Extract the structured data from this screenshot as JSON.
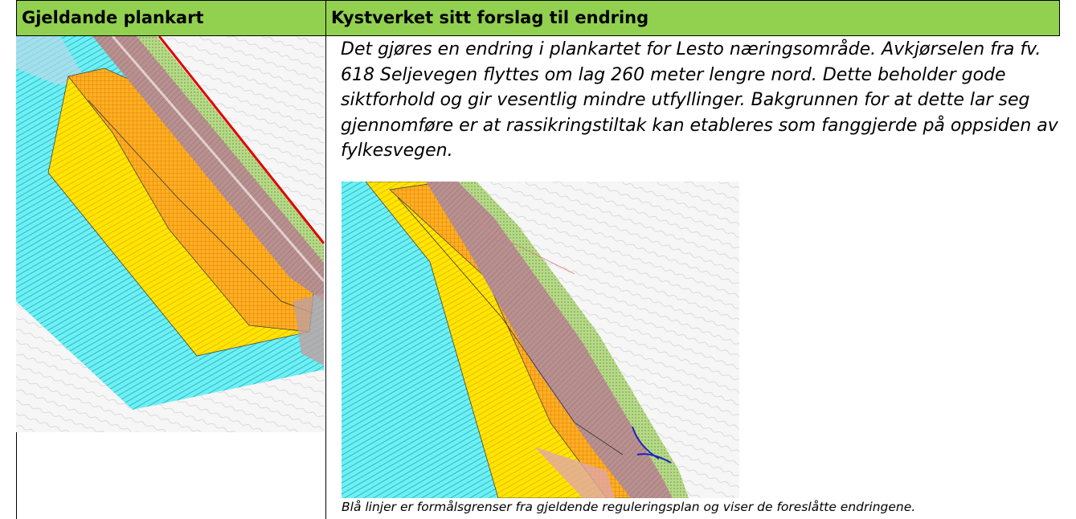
{
  "table": {
    "header": [
      "Gjeldande plankart",
      "Kystverket sitt forslag til endring"
    ],
    "description": "Det gjøres en endring i plankartet for Lesto næringsområde. Avkjørselen fra fv. 618 Seljevegen flyttes om lag 260 meter lengre nord. Dette beholder gode siktforhold og gir vesentlig mindre utfyllinger. Bakgrunnen for at dette lar seg gjennomføre er at rassikringstiltak kan etableres som fanggjerde på oppsiden av fylkesvegen.",
    "caption": "Blå linjer er formålsgrenser fra gjeldende reguleringsplan og viser de foreslåtte endringene."
  }
}
